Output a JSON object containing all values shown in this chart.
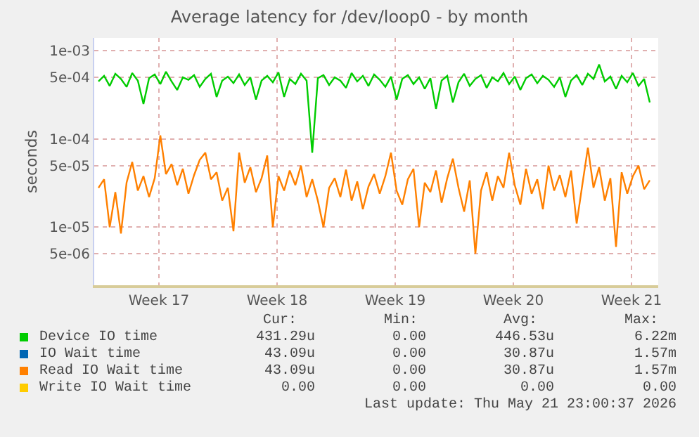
{
  "chart_data": {
    "type": "line",
    "title": "Average latency for /dev/loop0 - by month",
    "ylabel": "seconds",
    "log": "y",
    "x": [
      "2026-04-20T00:00",
      "2026-04-20T08:00",
      "2026-04-20T16:00",
      "2026-04-21T00:00",
      "2026-04-21T08:00",
      "2026-04-21T16:00",
      "2026-04-22T00:00",
      "2026-04-22T08:00",
      "2026-04-22T16:00",
      "2026-04-23T00:00",
      "2026-04-23T08:00",
      "2026-04-23T16:00",
      "2026-04-24T00:00",
      "2026-04-24T08:00",
      "2026-04-24T16:00",
      "2026-04-25T00:00",
      "2026-04-25T08:00",
      "2026-04-25T16:00",
      "2026-04-26T00:00",
      "2026-04-26T08:00",
      "2026-04-26T16:00",
      "2026-04-27T00:00",
      "2026-04-27T08:00",
      "2026-04-27T16:00",
      "2026-04-28T00:00",
      "2026-04-28T08:00",
      "2026-04-28T16:00",
      "2026-04-29T00:00",
      "2026-04-29T08:00",
      "2026-04-29T16:00",
      "2026-04-30T00:00",
      "2026-04-30T08:00",
      "2026-04-30T16:00",
      "2026-05-01T00:00",
      "2026-05-01T08:00",
      "2026-05-01T16:00",
      "2026-05-02T00:00",
      "2026-05-02T08:00",
      "2026-05-02T16:00",
      "2026-05-03T00:00",
      "2026-05-03T08:00",
      "2026-05-03T16:00",
      "2026-05-04T00:00",
      "2026-05-04T08:00",
      "2026-05-04T16:00",
      "2026-05-05T00:00",
      "2026-05-05T08:00",
      "2026-05-05T16:00",
      "2026-05-06T00:00",
      "2026-05-06T08:00",
      "2026-05-06T16:00",
      "2026-05-07T00:00",
      "2026-05-07T08:00",
      "2026-05-07T16:00",
      "2026-05-08T00:00",
      "2026-05-08T08:00",
      "2026-05-08T16:00",
      "2026-05-09T00:00",
      "2026-05-09T08:00",
      "2026-05-09T16:00",
      "2026-05-10T00:00",
      "2026-05-10T08:00",
      "2026-05-10T16:00",
      "2026-05-11T00:00",
      "2026-05-11T08:00",
      "2026-05-11T16:00",
      "2026-05-12T00:00",
      "2026-05-12T08:00",
      "2026-05-12T16:00",
      "2026-05-13T00:00",
      "2026-05-13T08:00",
      "2026-05-13T16:00",
      "2026-05-14T00:00",
      "2026-05-14T08:00",
      "2026-05-14T16:00",
      "2026-05-15T00:00",
      "2026-05-15T08:00",
      "2026-05-15T16:00",
      "2026-05-16T00:00",
      "2026-05-16T08:00",
      "2026-05-16T16:00",
      "2026-05-17T00:00",
      "2026-05-17T08:00",
      "2026-05-17T16:00",
      "2026-05-18T00:00",
      "2026-05-18T08:00",
      "2026-05-18T16:00",
      "2026-05-19T00:00",
      "2026-05-19T08:00",
      "2026-05-19T16:00",
      "2026-05-20T00:00",
      "2026-05-20T08:00",
      "2026-05-20T16:00",
      "2026-05-21T00:00",
      "2026-05-21T08:00",
      "2026-05-21T16:00",
      "2026-05-22T00:00",
      "2026-05-22T08:00",
      "2026-05-22T16:00"
    ],
    "series": [
      {
        "name": "Device IO time",
        "color": "#00cc00",
        "values": [
          0.00045,
          0.00052,
          0.0004,
          0.00055,
          0.00048,
          0.00039,
          0.00056,
          0.00046,
          0.00025,
          0.00049,
          0.00054,
          0.00042,
          0.00058,
          0.00045,
          0.00036,
          0.0005,
          0.00047,
          0.00053,
          0.00039,
          0.00048,
          0.00055,
          0.0003,
          0.00046,
          0.00051,
          0.00043,
          0.00054,
          0.00041,
          0.0005,
          0.00028,
          0.00046,
          0.00052,
          0.00044,
          0.00057,
          0.0003,
          0.00048,
          0.00042,
          0.00055,
          0.00046,
          7e-05,
          0.00049,
          0.00053,
          0.00041,
          0.0005,
          0.00046,
          0.00038,
          0.00056,
          0.00045,
          0.00052,
          0.0004,
          0.00054,
          0.00047,
          0.00039,
          0.00051,
          0.00028,
          0.00048,
          0.00053,
          0.00042,
          0.0005,
          0.00037,
          0.00049,
          0.00022,
          0.00046,
          0.00052,
          0.00026,
          0.00044,
          0.00055,
          0.0004,
          0.00048,
          0.00053,
          0.00038,
          0.0005,
          0.00045,
          0.00056,
          0.00042,
          0.00051,
          0.00036,
          0.00049,
          0.00054,
          0.00043,
          0.00052,
          0.00047,
          0.00039,
          0.0005,
          0.0003,
          0.00046,
          0.00053,
          0.00041,
          0.00055,
          0.00048,
          0.0007,
          0.00045,
          0.00051,
          0.00037,
          0.00052,
          0.00044,
          0.00056,
          0.0004,
          0.00048,
          0.00026
        ]
      },
      {
        "name": "IO Wait time",
        "color": "#0066b3",
        "values": [
          null,
          null,
          null,
          null,
          null,
          null,
          null,
          null,
          null,
          null,
          null,
          null,
          null,
          null,
          null,
          null,
          null,
          null,
          null,
          null,
          null,
          null,
          null,
          null,
          null,
          null,
          null,
          null,
          null,
          null,
          null,
          null,
          null,
          null,
          null,
          null,
          null,
          null,
          null,
          null,
          null,
          null,
          null,
          null,
          null,
          null,
          null,
          null,
          null,
          null,
          null,
          null,
          null,
          null,
          null,
          null,
          null,
          null,
          null,
          null,
          null,
          null,
          null,
          null,
          null,
          null,
          null,
          null,
          null,
          null,
          null,
          null,
          null,
          null,
          null,
          null,
          null,
          null,
          null,
          null,
          null,
          null,
          null,
          null,
          null,
          null,
          null,
          null,
          null,
          null,
          null,
          null,
          null,
          null,
          null,
          null,
          null,
          null,
          null
        ]
      },
      {
        "name": "Read IO Wait time",
        "color": "#ff8000",
        "values": [
          2.8e-05,
          3.5e-05,
          1e-05,
          2.5e-05,
          8.5e-06,
          3.2e-05,
          5.5e-05,
          2.6e-05,
          3.8e-05,
          2.2e-05,
          3.6e-05,
          0.00011,
          4e-05,
          5.2e-05,
          3e-05,
          4.6e-05,
          2.4e-05,
          3.9e-05,
          5.8e-05,
          7e-05,
          3.5e-05,
          4.2e-05,
          2e-05,
          2.8e-05,
          9e-06,
          7e-05,
          3.2e-05,
          4.8e-05,
          2.5e-05,
          3.6e-05,
          6.5e-05,
          1e-05,
          3.8e-05,
          2.6e-05,
          4.4e-05,
          3e-05,
          5e-05,
          2.2e-05,
          3.5e-05,
          2e-05,
          1e-05,
          2.8e-05,
          3.6e-05,
          2.2e-05,
          4.5e-05,
          2e-05,
          3.3e-05,
          1.6e-05,
          2.9e-05,
          4e-05,
          2.4e-05,
          3.8e-05,
          7e-05,
          2.6e-05,
          1.8e-05,
          3.5e-05,
          4.6e-05,
          1e-05,
          3.2e-05,
          2.5e-05,
          4.4e-05,
          1.9e-05,
          3.6e-05,
          6e-05,
          2.8e-05,
          1.5e-05,
          3.4e-05,
          5e-06,
          2.6e-05,
          4.2e-05,
          2e-05,
          3.8e-05,
          2.8e-05,
          7e-05,
          3e-05,
          1.8e-05,
          4.6e-05,
          2.4e-05,
          3.5e-05,
          1.6e-05,
          5e-05,
          2.6e-05,
          3.9e-05,
          2.2e-05,
          4.4e-05,
          1.1e-05,
          3e-05,
          8e-05,
          2.8e-05,
          4.8e-05,
          2e-05,
          3.6e-05,
          6e-06,
          4.2e-05,
          2.4e-05,
          3.8e-05,
          5e-05,
          2.7e-05,
          3.4e-05
        ]
      },
      {
        "name": "Write IO Wait time",
        "color": "#ffcc00",
        "values": [
          null,
          null,
          null,
          null,
          null,
          null,
          null,
          null,
          null,
          null,
          null,
          null,
          null,
          null,
          null,
          null,
          null,
          null,
          null,
          null,
          null,
          null,
          null,
          null,
          null,
          null,
          null,
          null,
          null,
          null,
          null,
          null,
          null,
          null,
          null,
          null,
          null,
          null,
          null,
          null,
          null,
          null,
          null,
          null,
          null,
          null,
          null,
          null,
          null,
          null,
          null,
          null,
          null,
          null,
          null,
          null,
          null,
          null,
          null,
          null,
          null,
          null,
          null,
          null,
          null,
          null,
          null,
          null,
          null,
          null,
          null,
          null,
          null,
          null,
          null,
          null,
          null,
          null,
          null,
          null,
          null,
          null,
          null,
          null,
          null,
          null,
          null,
          null,
          null,
          null,
          null,
          null,
          null,
          null,
          null,
          null,
          null,
          null,
          null
        ]
      }
    ],
    "xlim": [
      "2026-04-19T18:00",
      "2026-05-23T04:00"
    ],
    "xticks": [
      {
        "value": "2026-04-23T14:00",
        "label": "Week 17"
      },
      {
        "value": "2026-04-30T14:00",
        "label": "Week 18"
      },
      {
        "value": "2026-05-07T14:00",
        "label": "Week 19"
      },
      {
        "value": "2026-05-14T14:00",
        "label": "Week 20"
      },
      {
        "value": "2026-05-21T14:00",
        "label": "Week 21"
      }
    ],
    "ylim": [
      2.2e-06,
      0.0014
    ],
    "yticks": [
      {
        "value": 5e-06,
        "label": "5e-06"
      },
      {
        "value": 1e-05,
        "label": "1e-05"
      },
      {
        "value": 5e-05,
        "label": "5e-05"
      },
      {
        "value": 0.0001,
        "label": "1e-04"
      },
      {
        "value": 0.0005,
        "label": "5e-04"
      },
      {
        "value": 0.001,
        "label": "1e-03"
      }
    ],
    "grid": true,
    "legend": "bottom left",
    "line_style": "solid",
    "marker": "none",
    "annotations": [
      "Cur:",
      "Min:",
      "Avg:",
      "Max:",
      "431.29u",
      "0.00",
      "446.53u",
      "6.22m",
      "43.09u",
      "0.00",
      "30.87u",
      "1.57m",
      "43.09u",
      "0.00",
      "30.87u",
      "1.57m",
      "0.00",
      "0.00",
      "0.00",
      "0.00",
      "Last update: Thu May 21 23:00:37 2026"
    ]
  }
}
